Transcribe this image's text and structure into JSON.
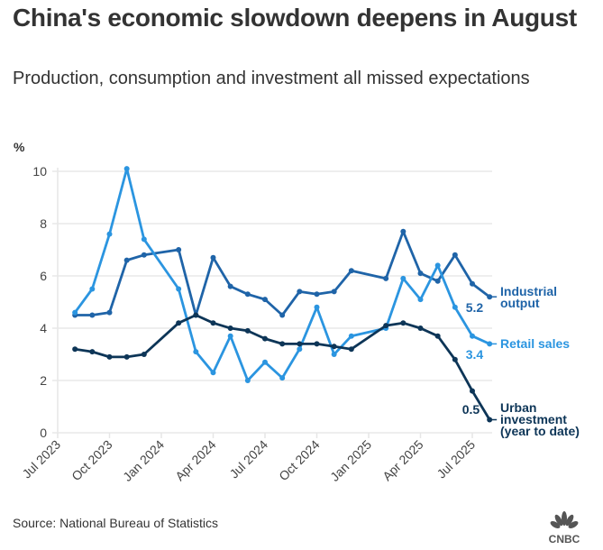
{
  "header": {
    "title": "China's economic slowdown deepens in August",
    "subtitle": "Production, consumption and investment all missed expectations"
  },
  "footer": {
    "source": "Source: National Bureau of Statistics",
    "logo_text": "CNBC"
  },
  "chart_data": {
    "type": "line",
    "title": "China's economic slowdown deepens in August",
    "subtitle": "Production, consumption and investment all missed expectations",
    "ylabel": "%",
    "xlabel": "",
    "ylim": [
      0,
      10
    ],
    "yticks": [
      0,
      2,
      4,
      6,
      8,
      10
    ],
    "grid": true,
    "legend": "inline-right",
    "xticks": [
      {
        "label": "Jul 2023",
        "month": 0
      },
      {
        "label": "Oct 2023",
        "month": 3
      },
      {
        "label": "Jan 2024",
        "month": 6
      },
      {
        "label": "Apr 2024",
        "month": 9
      },
      {
        "label": "Jul 2024",
        "month": 12
      },
      {
        "label": "Oct 2024",
        "month": 15
      },
      {
        "label": "Jan 2025",
        "month": 18
      },
      {
        "label": "Apr 2025",
        "month": 21
      },
      {
        "label": "Jul 2025",
        "month": 24
      }
    ],
    "x": [
      "Aug 2023",
      "Sep 2023",
      "Oct 2023",
      "Nov 2023",
      "Dec 2023",
      "Feb 2024",
      "Mar 2024",
      "Apr 2024",
      "May 2024",
      "Jun 2024",
      "Jul 2024",
      "Aug 2024",
      "Sep 2024",
      "Oct 2024",
      "Nov 2024",
      "Dec 2024",
      "Feb 2025",
      "Mar 2025",
      "Apr 2025",
      "May 2025",
      "Jun 2025",
      "Jul 2025",
      "Aug 2025"
    ],
    "x_month_index": [
      1,
      2,
      3,
      4,
      5,
      7,
      8,
      9,
      10,
      11,
      12,
      13,
      14,
      15,
      16,
      17,
      19,
      20,
      21,
      22,
      23,
      24,
      25
    ],
    "series": [
      {
        "name": "Industrial output",
        "label_lines": [
          "Industrial",
          "output"
        ],
        "color": "#1f64a8",
        "end_value_label": "5.2",
        "values": [
          4.5,
          4.5,
          4.6,
          6.6,
          6.8,
          7.0,
          4.5,
          6.7,
          5.6,
          5.3,
          5.1,
          4.5,
          5.4,
          5.3,
          5.4,
          6.2,
          5.9,
          7.7,
          6.1,
          5.8,
          6.8,
          5.7,
          5.2
        ]
      },
      {
        "name": "Retail sales",
        "label_lines": [
          "Retail sales"
        ],
        "color": "#2b95e0",
        "end_value_label": "3.4",
        "values": [
          4.6,
          5.5,
          7.6,
          10.1,
          7.4,
          5.5,
          3.1,
          2.3,
          3.7,
          2.0,
          2.7,
          2.1,
          3.2,
          4.8,
          3.0,
          3.7,
          4.0,
          5.9,
          5.1,
          6.4,
          4.8,
          3.7,
          3.4
        ]
      },
      {
        "name": "Urban investment (year to date)",
        "label_lines": [
          "Urban",
          "investment",
          "(year to date)"
        ],
        "color": "#0d3557",
        "end_value_label": "0.5",
        "values": [
          3.2,
          3.1,
          2.9,
          2.9,
          3.0,
          4.2,
          4.5,
          4.2,
          4.0,
          3.9,
          3.6,
          3.4,
          3.4,
          3.4,
          3.3,
          3.2,
          4.1,
          4.2,
          4.0,
          3.7,
          2.8,
          1.6,
          0.5
        ]
      }
    ]
  }
}
